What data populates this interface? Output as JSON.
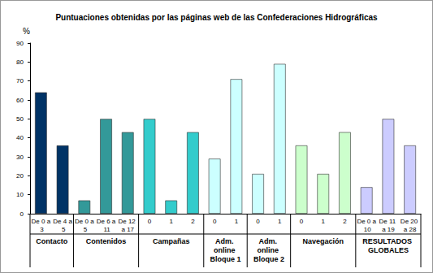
{
  "chart_data": {
    "type": "bar",
    "title": "Puntuaciones obtenidas por las páginas web de las Confederaciones Hidrográficas",
    "y_label": "%",
    "groups": [
      {
        "label": "Contacto",
        "color": "#003366",
        "categories": [
          "De 0 a 3",
          "De 4 a 5"
        ],
        "values": [
          64,
          36
        ]
      },
      {
        "label": "Contenidos",
        "color": "#339999",
        "categories": [
          "De 0 a 5",
          "De 6 a 11",
          "De 12 a 17"
        ],
        "values": [
          7,
          50,
          43
        ]
      },
      {
        "label": "Campañas",
        "color": "#33CCCC",
        "categories": [
          "0",
          "1",
          "2"
        ],
        "values": [
          50,
          7,
          43
        ]
      },
      {
        "label": "Adm. online Bloque 1",
        "color": "#CCFFFF",
        "categories": [
          "0",
          "1"
        ],
        "values": [
          29,
          71
        ]
      },
      {
        "label": "Adm. online Bloque 2",
        "color": "#CCFFFF",
        "categories": [
          "0",
          "1"
        ],
        "values": [
          21,
          79
        ]
      },
      {
        "label": "Navegación",
        "color": "#CCFFCC",
        "categories": [
          "0",
          "1",
          "2"
        ],
        "values": [
          36,
          21,
          43
        ]
      },
      {
        "label": "RESULTADOS GLOBALES",
        "color": "#CCCCFF",
        "categories": [
          "De 0 a 10",
          "De 11 a 19",
          "De 20 a 28"
        ],
        "values": [
          14,
          50,
          36
        ]
      }
    ],
    "ylim": [
      0,
      90
    ],
    "yticks": [
      0,
      10,
      20,
      30,
      40,
      50,
      60,
      70,
      80,
      90
    ],
    "grid": false
  }
}
